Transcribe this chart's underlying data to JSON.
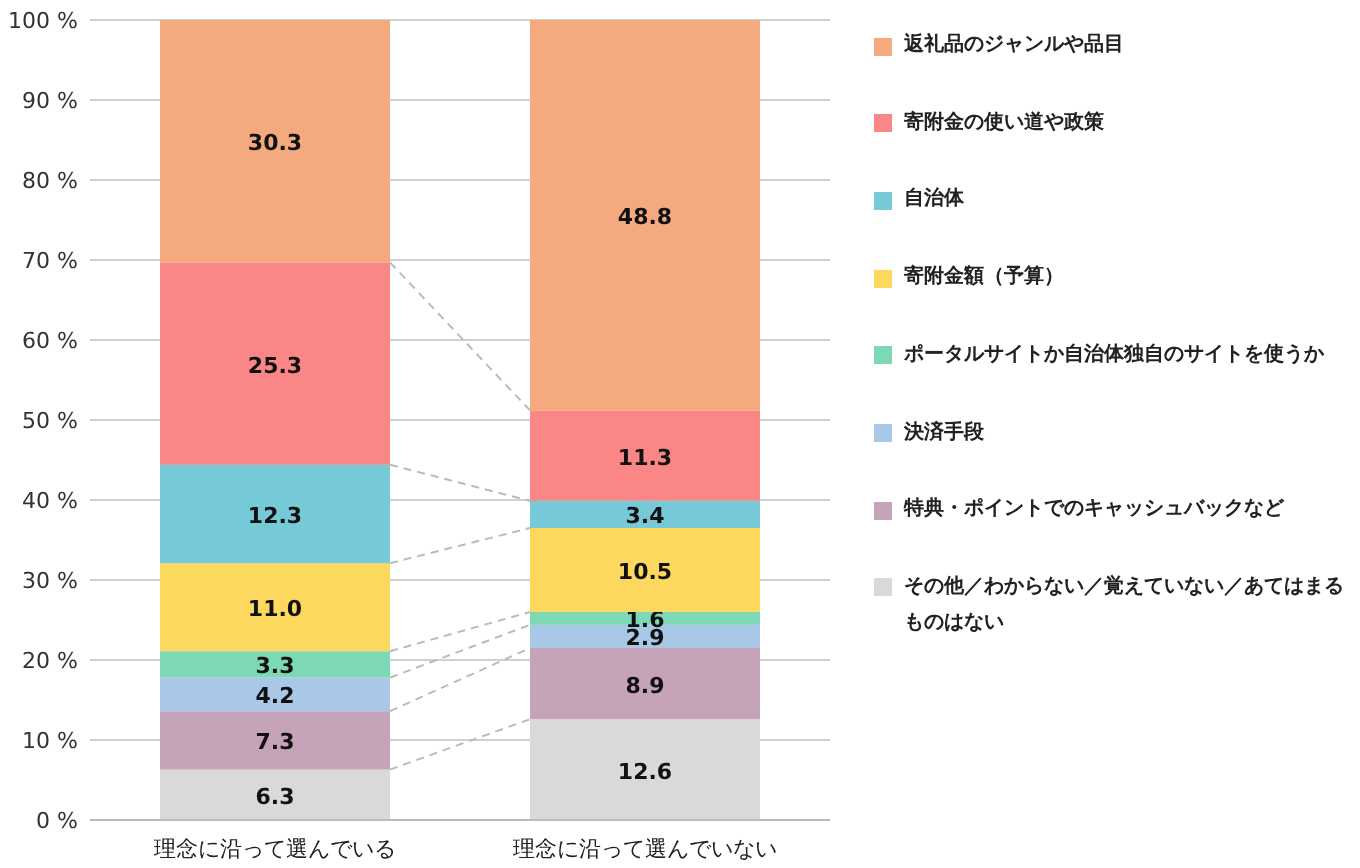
{
  "chart_data": {
    "type": "bar",
    "stacked": true,
    "categories": [
      "理念に沿って選んでいる",
      "理念に沿って選んでいない"
    ],
    "ylim": [
      0,
      100
    ],
    "yticks": [
      {
        "value": 0,
        "label": "0 %"
      },
      {
        "value": 10,
        "label": "10 %"
      },
      {
        "value": 20,
        "label": "20 %"
      },
      {
        "value": 30,
        "label": "30 %"
      },
      {
        "value": 40,
        "label": "40 %"
      },
      {
        "value": 50,
        "label": "50 %"
      },
      {
        "value": 60,
        "label": "60 %"
      },
      {
        "value": 70,
        "label": "70 %"
      },
      {
        "value": 80,
        "label": "80 %"
      },
      {
        "value": 90,
        "label": "90 %"
      },
      {
        "value": 100,
        "label": "100 %"
      }
    ],
    "grid": "y",
    "legend": "right",
    "data_labels": true,
    "series": [
      {
        "name": "その他／わからない／覚えていない／あてはまるものはない",
        "color": "#d9d9d9",
        "values": [
          6.3,
          12.6
        ]
      },
      {
        "name": "特典・ポイントでのキャッシュバックなど",
        "color": "#c5a3b9",
        "values": [
          7.3,
          8.9
        ]
      },
      {
        "name": "決済手段",
        "color": "#a9c8e8",
        "values": [
          4.2,
          2.9
        ]
      },
      {
        "name": "ポータルサイトか自治体独自のサイトを使うか",
        "color": "#7dd8b5",
        "values": [
          3.3,
          1.6
        ]
      },
      {
        "name": "寄附金額（予算）",
        "color": "#fdd85e",
        "values": [
          11.0,
          10.5
        ],
        "value_labels": [
          "11.0",
          "10.5"
        ]
      },
      {
        "name": "自治体",
        "color": "#76c9d6",
        "values": [
          12.3,
          3.4
        ]
      },
      {
        "name": "寄附金の使い道や政策",
        "color": "#fb8686",
        "values": [
          25.3,
          11.3
        ]
      },
      {
        "name": "返礼品のジャンルや品目",
        "color": "#f4a97f",
        "values": [
          30.3,
          48.8
        ]
      }
    ]
  }
}
